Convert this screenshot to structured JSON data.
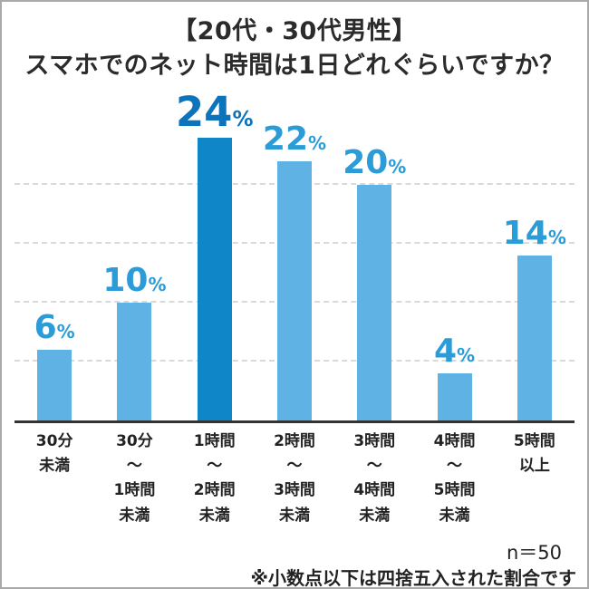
{
  "title": {
    "line1": "【20代・30代男性】",
    "line2": "スマホでのネット時間は1日どれぐらいですか？"
  },
  "footer": {
    "sample_size": "n＝50",
    "note": "※小数点以下は四捨五入された割合です"
  },
  "chart_data": {
    "type": "bar",
    "title": "【20代・30代男性】スマホでのネット時間は1日どれぐらいですか？",
    "categories": [
      "30分未満",
      "30分〜1時間未満",
      "1時間〜2時間未満",
      "2時間〜3時間未満",
      "3時間〜4時間未満",
      "4時間〜5時間未満",
      "5時間以上"
    ],
    "category_lines": [
      [
        "30分",
        "未満"
      ],
      [
        "30分",
        "〜",
        "1時間",
        "未満"
      ],
      [
        "1時間",
        "〜",
        "2時間",
        "未満"
      ],
      [
        "2時間",
        "〜",
        "3時間",
        "未満"
      ],
      [
        "3時間",
        "〜",
        "4時間",
        "未満"
      ],
      [
        "4時間",
        "〜",
        "5時間",
        "未満"
      ],
      [
        "5時間",
        "以上"
      ]
    ],
    "values": [
      6,
      10,
      24,
      22,
      20,
      4,
      14
    ],
    "unit": "%",
    "xlabel": "",
    "ylabel": "",
    "ylim": [
      0,
      26
    ],
    "gridlines_percent": [
      5,
      10,
      15,
      20
    ],
    "grid_style": "dashed",
    "legend_position": "none",
    "highlight_index": 2,
    "sample_size": "n＝50",
    "note": "※小数点以下は四捨五入された割合です",
    "colors": {
      "bar": "#5fb3e4",
      "bar_highlight": "#0f86c8",
      "value_label": "#2b9cd8",
      "value_label_highlight": "#0d73bb",
      "axis": "#333333",
      "gridline": "#d9d9d9",
      "title_text": "#2b2b2b",
      "frame_border": "#a9a9a9"
    }
  }
}
